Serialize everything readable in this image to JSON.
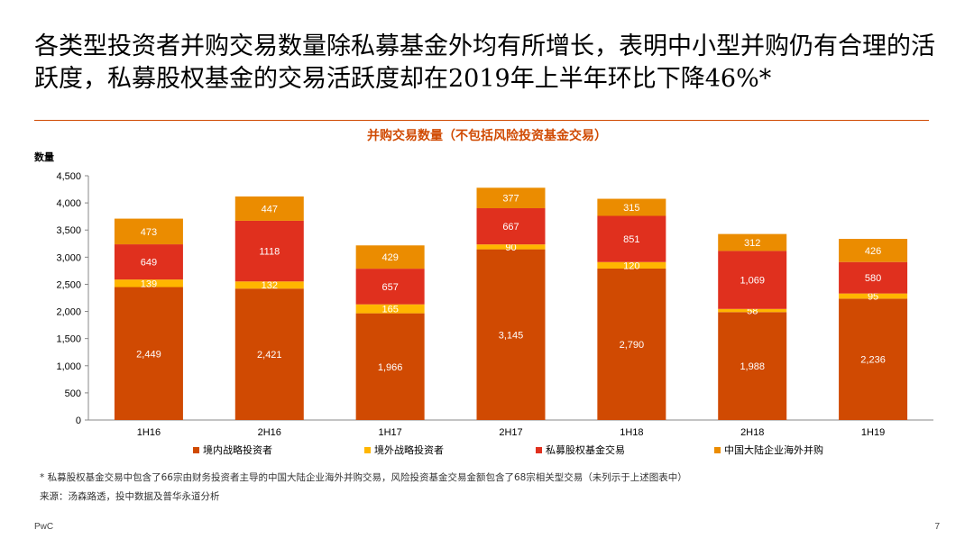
{
  "headline": "各类型投资者并购交易数量除私募基金外均有所增长，表明中小型并购仍有合理的活跃度，私募股权基金的交易活跃度却在2019年上半年环比下降46%*",
  "footnote": "* 私募股权基金交易中包含了66宗由财务投资者主导的中国大陆企业海外并购交易，风险投资基金交易金额包含了68宗相关型交易（未列示于上述图表中）",
  "source": "来源：汤森路透，投中数据及普华永道分析",
  "brand": "PwC",
  "page_number": "7",
  "colors": {
    "accent": "#d04a02",
    "domestic_strategic": "#d04a02",
    "foreign_strategic": "#ffb600",
    "pe_fund": "#e0301e",
    "outbound": "#eb8c00"
  },
  "chart_data": {
    "type": "bar",
    "stacked": true,
    "title": "并购交易数量（不包括风险投资基金交易）",
    "ylabel": "数量",
    "xlabel": "",
    "ylim": [
      0,
      4500
    ],
    "yticks": [
      0,
      500,
      1000,
      1500,
      2000,
      2500,
      3000,
      3500,
      4000,
      4500
    ],
    "ytick_labels": [
      "0",
      "500",
      "1,000",
      "1,500",
      "2,000",
      "2,500",
      "3,000",
      "3,500",
      "4,000",
      "4,500"
    ],
    "grid": false,
    "legend_position": "bottom",
    "categories": [
      "1H16",
      "2H16",
      "1H17",
      "2H17",
      "1H18",
      "2H18",
      "1H19"
    ],
    "series": [
      {
        "name": "境内战略投资者",
        "color": "#d04a02",
        "values": [
          2449,
          2421,
          1966,
          3145,
          2790,
          1988,
          2236
        ],
        "labels": [
          "2,449",
          "2,421",
          "1,966",
          "3,145",
          "2,790",
          "1,988",
          "2,236"
        ]
      },
      {
        "name": "境外战略投资者",
        "color": "#ffb600",
        "values": [
          139,
          132,
          165,
          90,
          120,
          58,
          95
        ],
        "labels": [
          "139",
          "132",
          "165",
          "90",
          "120",
          "58",
          "95"
        ]
      },
      {
        "name": "私募股权基金交易",
        "color": "#e0301e",
        "values": [
          649,
          1118,
          657,
          667,
          851,
          1069,
          580
        ],
        "labels": [
          "649",
          "1118",
          "657",
          "667",
          "851",
          "1,069",
          "580"
        ]
      },
      {
        "name": "中国大陆企业海外并购",
        "color": "#eb8c00",
        "values": [
          473,
          447,
          429,
          377,
          315,
          312,
          426
        ],
        "labels": [
          "473",
          "447",
          "429",
          "377",
          "315",
          "312",
          "426"
        ]
      }
    ]
  }
}
